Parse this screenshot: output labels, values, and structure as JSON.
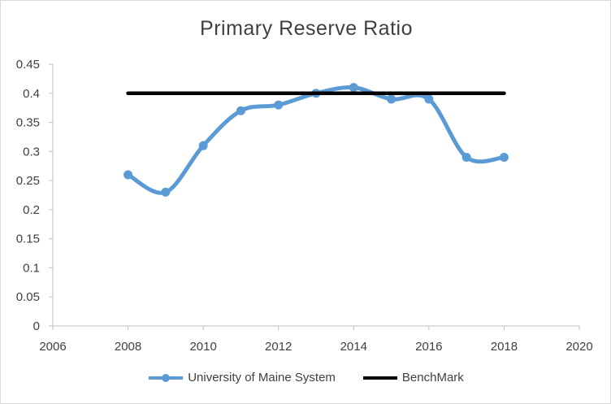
{
  "chart_data": {
    "type": "line",
    "title": "Primary Reserve Ratio",
    "xlabel": "",
    "ylabel": "",
    "xlim": [
      2006,
      2020
    ],
    "ylim": [
      0,
      0.45
    ],
    "x_ticks": [
      "2006",
      "2008",
      "2010",
      "2012",
      "2014",
      "2016",
      "2018",
      "2020"
    ],
    "y_ticks": [
      "0",
      "0.05",
      "0.1",
      "0.15",
      "0.2",
      "0.25",
      "0.3",
      "0.35",
      "0.4",
      "0.45"
    ],
    "grid": false,
    "legend_position": "bottom",
    "series": [
      {
        "name": "University of Maine System",
        "color": "#5b9bd5",
        "smooth": true,
        "markers": true,
        "x": [
          2008,
          2009,
          2010,
          2011,
          2012,
          2013,
          2014,
          2015,
          2016,
          2017,
          2018
        ],
        "y": [
          0.26,
          0.23,
          0.31,
          0.37,
          0.38,
          0.4,
          0.41,
          0.39,
          0.39,
          0.29,
          0.29
        ]
      },
      {
        "name": "BenchMark",
        "color": "#000000",
        "smooth": false,
        "markers": false,
        "x": [
          2008,
          2018
        ],
        "y": [
          0.4,
          0.4
        ]
      }
    ]
  }
}
